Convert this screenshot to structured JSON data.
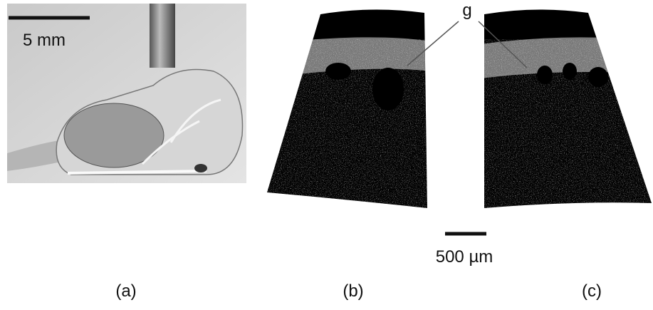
{
  "panel_a": {
    "scale_label": "5 mm",
    "caption": "(a)"
  },
  "panel_b": {
    "caption": "(b)"
  },
  "panel_c": {
    "caption": "(c)"
  },
  "annotation": "g",
  "scale_label": "500 µm"
}
